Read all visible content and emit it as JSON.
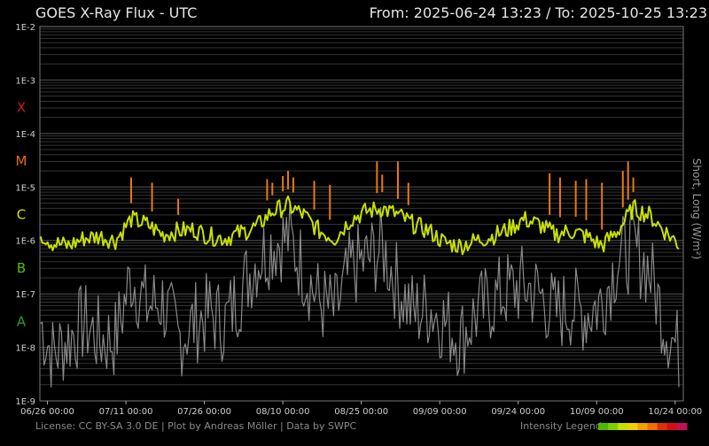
{
  "header": {
    "title": "GOES X-Ray Flux - UTC",
    "range": "From: 2025-06-24 13:23  /  To: 2025-10-25 13:23"
  },
  "footer": {
    "license": "License: CC BY-SA 3.0 DE | Plot by Andreas Möller | Data by SWPC",
    "legend_label": "Intensity Legend",
    "legend_colors": [
      "#4fb800",
      "#7fd000",
      "#c8e000",
      "#f0d000",
      "#f0a000",
      "#f07000",
      "#e03000",
      "#d01010",
      "#c0105a"
    ]
  },
  "chart_data": {
    "type": "line",
    "title": "GOES X-Ray Flux - UTC",
    "ylabel": "Short, Long (W/m²)",
    "xlabel": "",
    "yscale": "log",
    "ylim": [
      1e-09,
      0.01
    ],
    "ytick_labels": [
      "1E-2",
      "1E-3",
      "1E-4",
      "1E-5",
      "1E-6",
      "1E-7",
      "1E-8",
      "1E-9"
    ],
    "xlim": [
      "2025-06-24",
      "2025-10-25"
    ],
    "xtick_labels": [
      "06/26 00:00",
      "07/11 00:00",
      "07/26 00:00",
      "08/10 00:00",
      "08/25 00:00",
      "09/09 00:00",
      "09/24 00:00",
      "10/09 00:00",
      "10/24 00:00"
    ],
    "flare_classes": [
      {
        "label": "X",
        "color": "#d01818"
      },
      {
        "label": "M",
        "color": "#e86a10"
      },
      {
        "label": "C",
        "color": "#d8e000"
      },
      {
        "label": "B",
        "color": "#58c000"
      },
      {
        "label": "A",
        "color": "#2aa02a"
      }
    ],
    "grid": true,
    "series": [
      {
        "color": "#c8e000",
        "x": [
          "06-24",
          "06-27",
          "06-30",
          "07-03",
          "07-06",
          "07-09",
          "07-12",
          "07-15",
          "07-18",
          "07-21",
          "07-24",
          "07-27",
          "07-30",
          "08-02",
          "08-05",
          "08-08",
          "08-11",
          "08-14",
          "08-17",
          "08-20",
          "08-23",
          "08-26",
          "08-29",
          "09-01",
          "09-04",
          "09-07",
          "09-10",
          "09-13",
          "09-16",
          "09-19",
          "09-22",
          "09-25",
          "09-28",
          "10-01",
          "10-04",
          "10-07",
          "10-10",
          "10-13",
          "10-16",
          "10-19",
          "10-22",
          "10-25"
        ],
        "y": [
          1.5e-06,
          9e-07,
          8e-07,
          1.1e-06,
          1.2e-06,
          1e-06,
          2.5e-06,
          2e-06,
          1.3e-06,
          1.5e-06,
          1.6e-06,
          1.2e-06,
          1.1e-06,
          1.4e-06,
          1.8e-06,
          3.5e-06,
          4.5e-06,
          3e-06,
          1.5e-06,
          1.1e-06,
          2.5e-06,
          3.5e-06,
          4e-06,
          3e-06,
          2e-06,
          1.5e-06,
          9e-07,
          8e-07,
          1e-06,
          1.2e-06,
          1.6e-06,
          2.5e-06,
          2e-06,
          1.3e-06,
          1.5e-06,
          1.2e-06,
          8e-07,
          1.5e-06,
          4e-06,
          3e-06,
          1.5e-06,
          8e-07
        ]
      },
      {
        "color": "#8a8a8a",
        "x": [
          "06-24",
          "06-27",
          "06-30",
          "07-03",
          "07-06",
          "07-09",
          "07-12",
          "07-15",
          "07-18",
          "07-21",
          "07-24",
          "07-27",
          "07-30",
          "08-02",
          "08-05",
          "08-08",
          "08-11",
          "08-14",
          "08-17",
          "08-20",
          "08-23",
          "08-26",
          "08-29",
          "09-01",
          "09-04",
          "09-07",
          "09-10",
          "09-13",
          "09-16",
          "09-19",
          "09-22",
          "09-25",
          "09-28",
          "10-01",
          "10-04",
          "10-07",
          "10-10",
          "10-13",
          "10-16",
          "10-19",
          "10-22",
          "10-25"
        ],
        "y": [
          3e-08,
          5e-09,
          1e-08,
          2e-08,
          1e-08,
          1e-08,
          1.5e-07,
          4e-08,
          5e-08,
          1e-08,
          2e-08,
          3e-08,
          2e-08,
          8e-08,
          3e-07,
          6e-07,
          8e-07,
          2e-07,
          5e-08,
          3e-08,
          2e-07,
          3e-07,
          5e-07,
          1e-07,
          3e-08,
          4e-08,
          2e-08,
          1e-08,
          3e-08,
          5e-08,
          8e-08,
          1e-07,
          7e-08,
          3e-08,
          4e-08,
          3e-08,
          5e-08,
          3e-07,
          5e-07,
          2e-07,
          2e-08,
          5e-09
        ]
      }
    ],
    "flares": [
      {
        "date": "07-12",
        "peak": 1.5e-05
      },
      {
        "date": "07-16",
        "peak": 1.2e-05
      },
      {
        "date": "07-21",
        "peak": 6e-06
      },
      {
        "date": "08-07",
        "peak": 1.4e-05
      },
      {
        "date": "08-08",
        "peak": 1.2e-05
      },
      {
        "date": "08-10",
        "peak": 1.6e-05
      },
      {
        "date": "08-11",
        "peak": 2e-05
      },
      {
        "date": "08-12",
        "peak": 1.5e-05
      },
      {
        "date": "08-16",
        "peak": 1.3e-05
      },
      {
        "date": "08-19",
        "peak": 1.1e-05
      },
      {
        "date": "08-28",
        "peak": 3e-05
      },
      {
        "date": "08-29",
        "peak": 1.7e-05
      },
      {
        "date": "09-01",
        "peak": 1.5e-05
      },
      {
        "date": "09-01",
        "peak": 3e-05
      },
      {
        "date": "09-03",
        "peak": 1.2e-05
      },
      {
        "date": "09-30",
        "peak": 1.8e-05
      },
      {
        "date": "10-02",
        "peak": 1.5e-05
      },
      {
        "date": "10-05",
        "peak": 1.3e-05
      },
      {
        "date": "10-07",
        "peak": 1.4e-05
      },
      {
        "date": "10-10",
        "peak": 1.2e-05
      },
      {
        "date": "10-14",
        "peak": 2e-05
      },
      {
        "date": "10-15",
        "peak": 3e-05
      },
      {
        "date": "10-16",
        "peak": 1.5e-05
      }
    ]
  }
}
